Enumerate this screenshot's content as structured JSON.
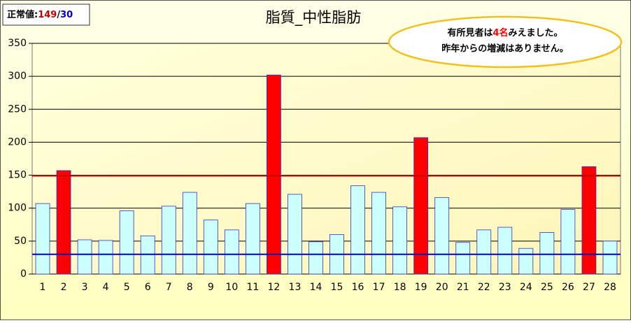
{
  "chart_data": {
    "type": "bar",
    "title": "脂質_中性脂肪",
    "categories": [
      "1",
      "2",
      "3",
      "4",
      "5",
      "6",
      "7",
      "8",
      "9",
      "10",
      "11",
      "12",
      "13",
      "14",
      "15",
      "16",
      "17",
      "18",
      "19",
      "20",
      "21",
      "22",
      "23",
      "24",
      "25",
      "26",
      "27",
      "28"
    ],
    "values": [
      107,
      157,
      52,
      51,
      96,
      58,
      103,
      124,
      82,
      67,
      107,
      302,
      121,
      49,
      60,
      134,
      124,
      102,
      207,
      116,
      48,
      67,
      71,
      39,
      63,
      98,
      163,
      50
    ],
    "color": "#ccffff",
    "highlight_color": "#ff0000",
    "bar_stroke": "#3333cc",
    "ylim": [
      0,
      350
    ],
    "yticks": [
      0,
      50,
      100,
      150,
      200,
      250,
      300,
      350
    ],
    "grid": true,
    "reference_lines": [
      {
        "value": 149,
        "color": "#c00000"
      },
      {
        "value": 30,
        "color": "#0000cc"
      }
    ],
    "normal_label": {
      "prefix": "正常値:",
      "separator": "/"
    },
    "annotation": {
      "line1": [
        "有所見者は",
        "4名",
        "みえました。"
      ],
      "line2": "昨年からの増減はありません。"
    }
  }
}
